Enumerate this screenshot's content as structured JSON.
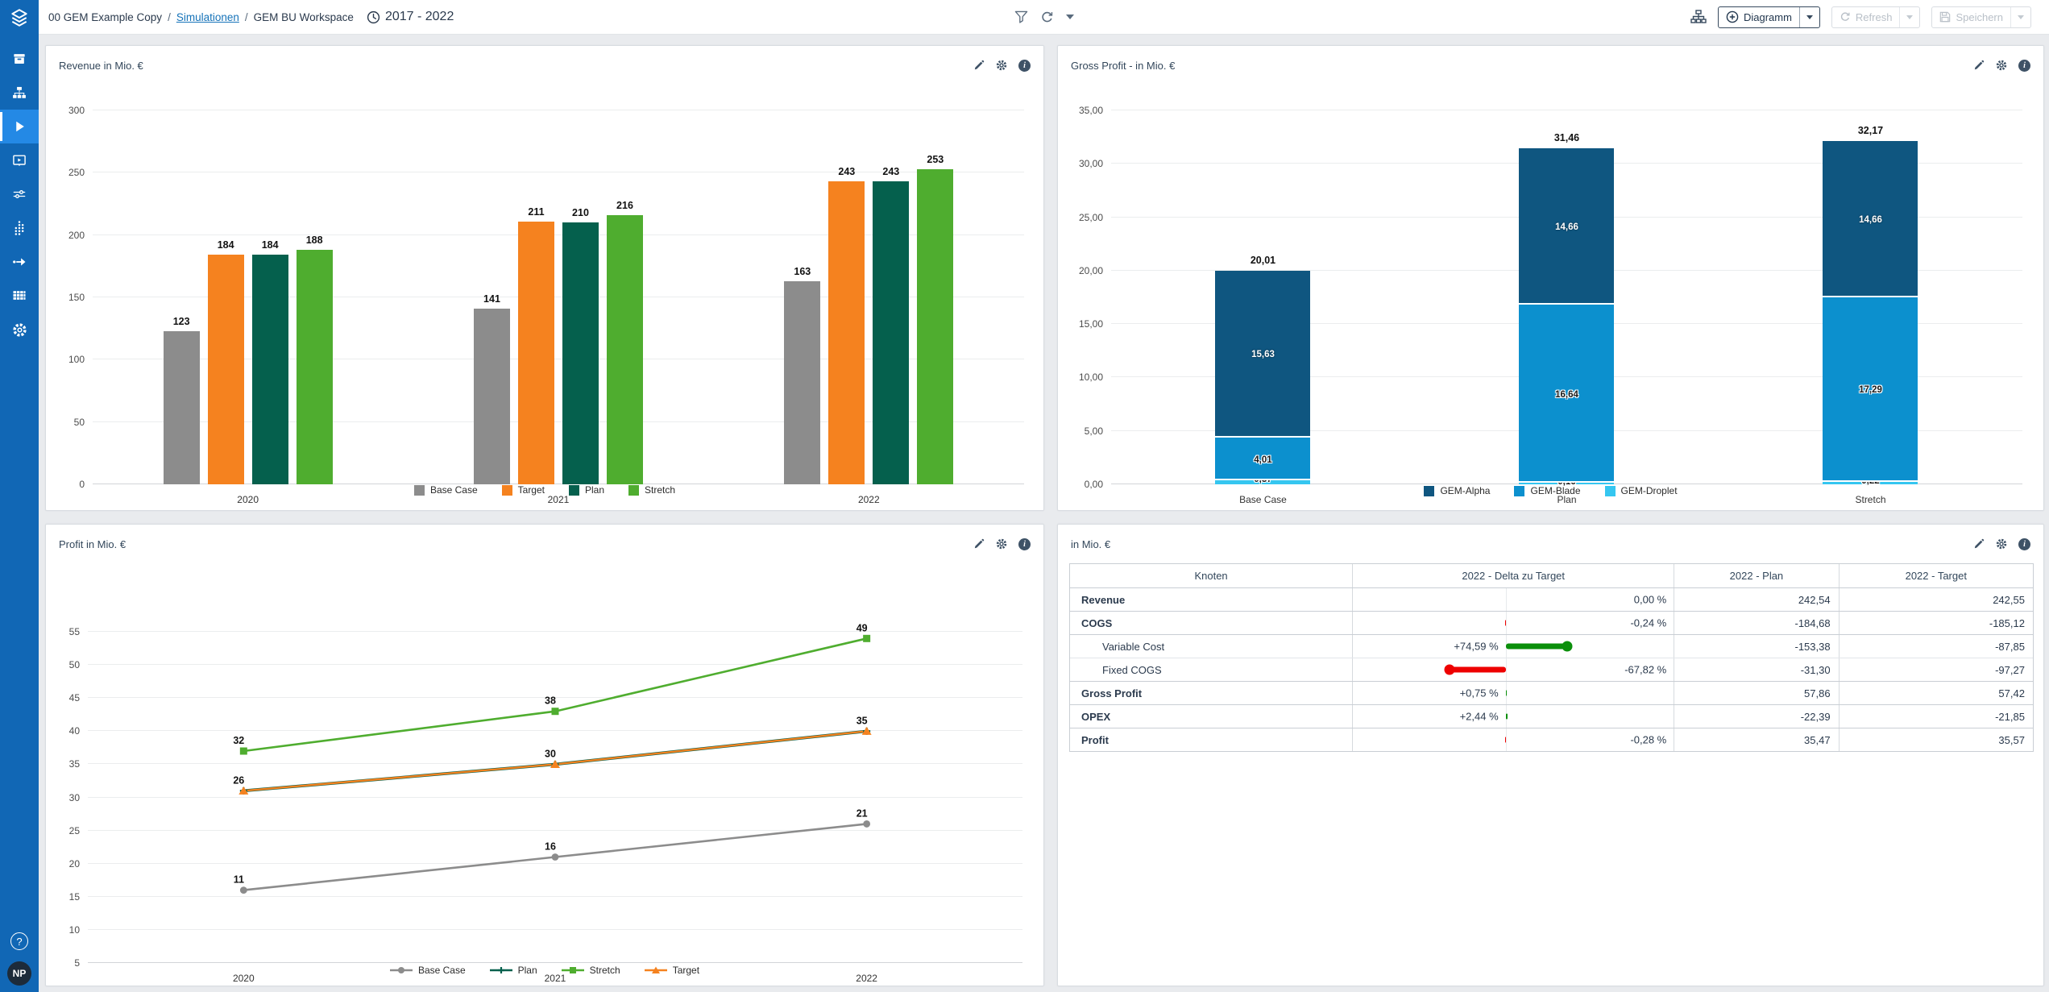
{
  "topbar": {
    "breadcrumb": [
      "00 GEM Example Copy",
      "Simulationen",
      "GEM BU Workspace"
    ],
    "date_range": "2017 - 2022",
    "toolbar": {
      "diagramm_label": "Diagramm",
      "refresh_label": "Refresh",
      "save_label": "Speichern"
    }
  },
  "sidebar": {
    "help_label": "?",
    "avatar_initials": "NP"
  },
  "chart_data": [
    {
      "type": "bar",
      "title": "Revenue in Mio. €",
      "categories": [
        "2020",
        "2021",
        "2022"
      ],
      "series": [
        {
          "name": "Base Case",
          "color": "#8C8C8C",
          "values": [
            123,
            141,
            163
          ]
        },
        {
          "name": "Target",
          "color": "#F5821F",
          "values": [
            184,
            211,
            243
          ]
        },
        {
          "name": "Plan",
          "color": "#05604D",
          "values": [
            184,
            210,
            243
          ]
        },
        {
          "name": "Stretch",
          "color": "#4FAD2F",
          "values": [
            188,
            216,
            253
          ]
        }
      ],
      "ylim": [
        0,
        300
      ],
      "ystep": 50,
      "ylabels": [
        "0",
        "50",
        "100",
        "150",
        "200",
        "250",
        "300"
      ],
      "grid": true,
      "legend_position": "bottom"
    },
    {
      "type": "stacked-bar",
      "title": "Gross Profit -  in Mio. €",
      "categories": [
        "Base Case",
        "Plan",
        "Stretch"
      ],
      "series": [
        {
          "name": "GEM-Droplet",
          "color": "#35C6F0",
          "values": [
            0.37,
            0.16,
            0.22
          ],
          "labels": [
            "0,37",
            "0,16",
            "0,22"
          ]
        },
        {
          "name": "GEM-Blade",
          "color": "#0C90CE",
          "values": [
            4.01,
            16.64,
            17.29
          ],
          "labels": [
            "4,01",
            "16,64",
            "17,29"
          ]
        },
        {
          "name": "GEM-Alpha",
          "color": "#0F5680",
          "values": [
            15.63,
            14.66,
            14.66
          ],
          "labels": [
            "15,63",
            "14,66",
            "14,66"
          ]
        }
      ],
      "totals": [
        "20,01",
        "31,46",
        "32,17"
      ],
      "legend_order": [
        "GEM-Alpha",
        "GEM-Blade",
        "GEM-Droplet"
      ],
      "ylim": [
        0,
        35
      ],
      "ystep": 5,
      "ylabels": [
        "0,00",
        "5,00",
        "10,00",
        "15,00",
        "20,00",
        "25,00",
        "30,00",
        "35,00"
      ],
      "grid": true,
      "legend_position": "bottom"
    },
    {
      "type": "line",
      "title": "Profit in Mio. €",
      "x": [
        "2020",
        "2021",
        "2022"
      ],
      "series": [
        {
          "name": "Stretch",
          "color": "#4FAD2F",
          "marker": "square",
          "values": [
            32,
            38,
            49
          ],
          "show_labels": true,
          "width": 2.6
        },
        {
          "name": "Plan",
          "color": "#05604D",
          "marker": "plus",
          "values": [
            26,
            30,
            35
          ],
          "show_labels": false,
          "width": 3.6
        },
        {
          "name": "Target",
          "color": "#F5821F",
          "marker": "triangle",
          "values": [
            26,
            30,
            35
          ],
          "show_labels": true,
          "width": 2.4
        },
        {
          "name": "Base Case",
          "color": "#8C8C8C",
          "marker": "circle",
          "values": [
            11,
            16,
            21
          ],
          "show_labels": true,
          "width": 2.6
        }
      ],
      "legend_order": [
        "Base Case",
        "Plan",
        "Stretch",
        "Target"
      ],
      "ylim": [
        0,
        55
      ],
      "ystep": 5,
      "ylabels": [
        "5",
        "10",
        "15",
        "20",
        "25",
        "30",
        "35",
        "40",
        "45",
        "50",
        "55"
      ],
      "grid": true,
      "legend_position": "bottom"
    },
    {
      "type": "table",
      "title": "in Mio. €",
      "columns": [
        "Knoten",
        "2022 - Delta zu Target",
        "2022 - Plan",
        "2022 - Target"
      ],
      "positive_color": "#0B8F0B",
      "negative_color": "#EE0000",
      "rows": [
        {
          "label": "Revenue",
          "bold": true,
          "indent": false,
          "delta_text": "0,00 %",
          "delta_pct": 0,
          "plan": "242,54",
          "target": "242,55"
        },
        {
          "label": "COGS",
          "bold": true,
          "indent": false,
          "delta_text": "-0,24 %",
          "delta_pct": -0.24,
          "plan": "-184,68",
          "target": "-185,12"
        },
        {
          "label": "Variable Cost",
          "bold": false,
          "indent": true,
          "delta_text": "+74,59 %",
          "delta_pct": 74.59,
          "plan": "-153,38",
          "target": "-87,85"
        },
        {
          "label": "Fixed COGS",
          "bold": false,
          "indent": true,
          "delta_text": "-67,82 %",
          "delta_pct": -67.82,
          "plan": "-31,30",
          "target": "-97,27"
        },
        {
          "label": "Gross Profit",
          "bold": true,
          "indent": false,
          "delta_text": "+0,75 %",
          "delta_pct": 0.75,
          "plan": "57,86",
          "target": "57,42"
        },
        {
          "label": "OPEX",
          "bold": true,
          "indent": false,
          "delta_text": "+2,44 %",
          "delta_pct": 2.44,
          "plan": "-22,39",
          "target": "-21,85"
        },
        {
          "label": "Profit",
          "bold": true,
          "indent": false,
          "delta_text": "-0,28 %",
          "delta_pct": -0.28,
          "plan": "35,47",
          "target": "35,57"
        }
      ]
    }
  ]
}
